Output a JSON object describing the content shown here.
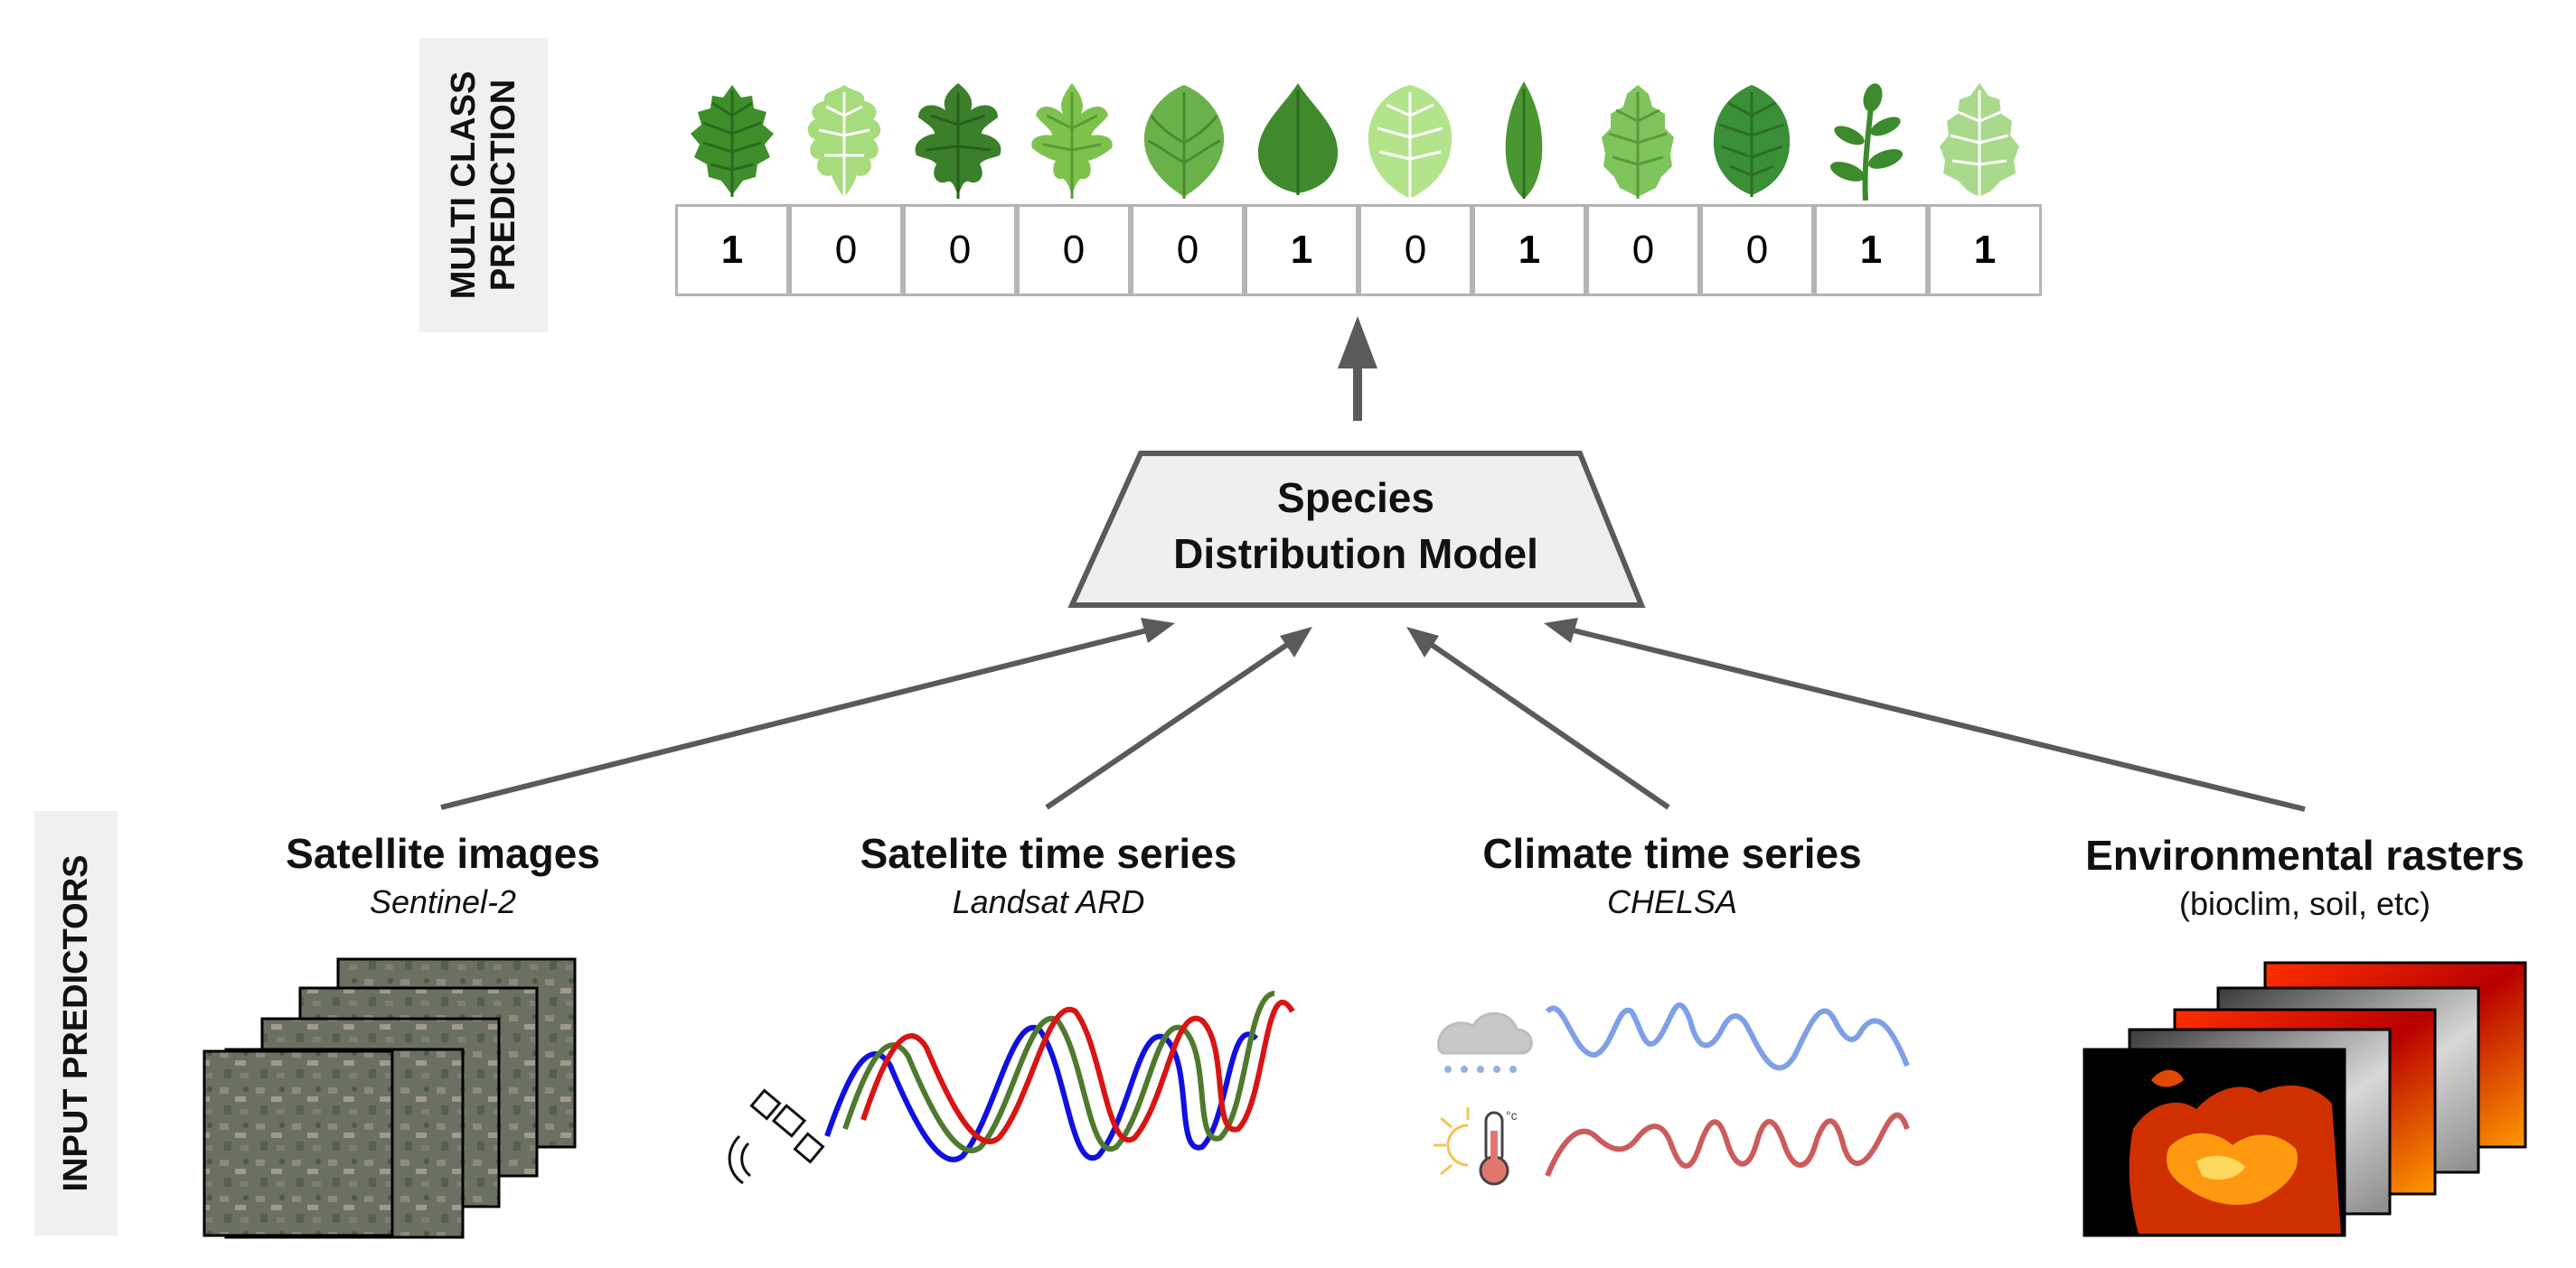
{
  "multi_class_label_line1": "MULTI CLASS",
  "multi_class_label_line2": "PREDICTION",
  "input_predictors_label": "INPUT PREDICTORS",
  "predictions": [
    "1",
    "0",
    "0",
    "0",
    "0",
    "1",
    "0",
    "1",
    "0",
    "0",
    "1",
    "1"
  ],
  "model": {
    "line1": "Species",
    "line2": "Distribution Model"
  },
  "sources": [
    {
      "title": "Satellite images",
      "subtitle": "Sentinel-2"
    },
    {
      "title": "Satelite time series",
      "subtitle": "Landsat ARD"
    },
    {
      "title": "Climate time series",
      "subtitle": "CHELSA"
    },
    {
      "title": "Environmental rasters",
      "subtitle": "(bioclim, soil, etc)"
    }
  ],
  "temperature_unit": "°c",
  "colors": {
    "arrow": "#5a5a5a",
    "model_fill": "#efefef",
    "cell_border": "#b4b4b4",
    "series_blue": "#1010e0",
    "series_green": "#4f7a2e",
    "series_red": "#d81414",
    "climate_blue": "#7f9fe6",
    "climate_red": "#cc5c5c"
  }
}
